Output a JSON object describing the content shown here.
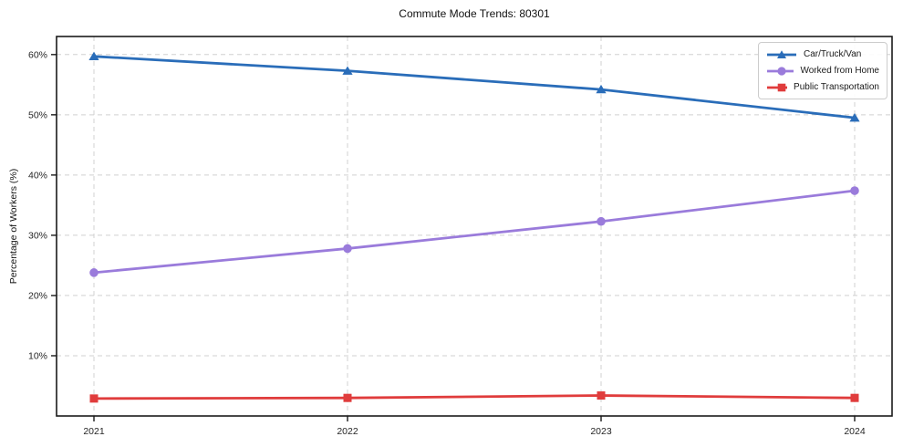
{
  "title": "Commute Mode Trends: 80301",
  "chart_data": {
    "type": "line",
    "title": "Commute Mode Trends: 80301",
    "xlabel": "",
    "ylabel": "Percentage of Workers (%)",
    "x": [
      "2021",
      "2022",
      "2023",
      "2024"
    ],
    "series": [
      {
        "name": "Car/Truck/Van",
        "color": "#2a6db9",
        "marker": "triangle",
        "values": [
          59.7,
          57.3,
          54.2,
          49.5
        ]
      },
      {
        "name": "Worked from Home",
        "color": "#9a7bdb",
        "marker": "circle",
        "values": [
          23.8,
          27.8,
          32.3,
          37.4
        ]
      },
      {
        "name": "Public Transportation",
        "color": "#e03c3c",
        "marker": "square",
        "values": [
          2.9,
          3.0,
          3.4,
          3.0
        ]
      }
    ],
    "ylim": [
      0,
      63
    ],
    "yticks": [
      10,
      20,
      30,
      40,
      50,
      60
    ],
    "ytick_suffix": "%",
    "grid": true,
    "grid_style": "dashed",
    "legend_position": "upper right",
    "colors": {
      "grid": "#d0d0d0",
      "spine": "#1a1a1a",
      "tick_label": "#262626",
      "legend_border": "#cccccc"
    }
  }
}
